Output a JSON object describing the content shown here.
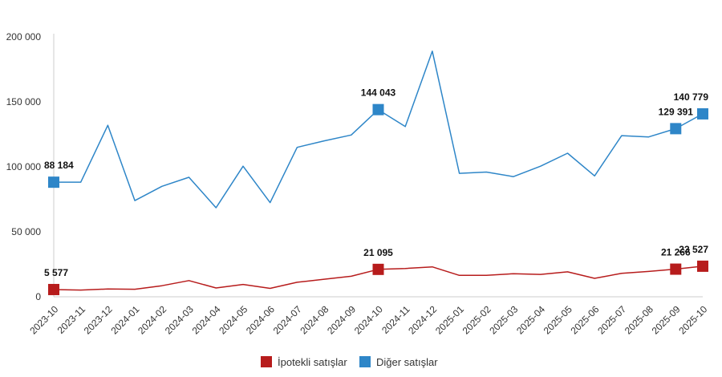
{
  "chart_data": {
    "type": "line",
    "title": "",
    "xlabel": "",
    "ylabel": "",
    "x": [
      "2023-10",
      "2023-11",
      "2023-12",
      "2024-01",
      "2024-02",
      "2024-03",
      "2024-04",
      "2024-05",
      "2024-06",
      "2024-07",
      "2024-08",
      "2024-09",
      "2024-10",
      "2024-11",
      "2024-12",
      "2025-01",
      "2025-02",
      "2025-03",
      "2025-04",
      "2025-05",
      "2025-06",
      "2025-07",
      "2025-08",
      "2025-09",
      "2025-10"
    ],
    "ylim": [
      0,
      200000
    ],
    "yticks": [
      0,
      50000,
      100000,
      150000,
      200000
    ],
    "ytick_labels": [
      "0",
      "50 000",
      "100 000",
      "150 000",
      "200 000"
    ],
    "grid": false,
    "legend_position": "bottom",
    "series": [
      {
        "name": "İpotekli satışlar",
        "color": "#b71c1c",
        "values": [
          5577,
          5200,
          6000,
          5800,
          8500,
          12500,
          6800,
          9500,
          6500,
          11200,
          13500,
          15800,
          21095,
          21800,
          23000,
          16500,
          16500,
          17800,
          17200,
          19200,
          14200,
          18000,
          19500,
          21266,
          23527
        ],
        "labeled_points": [
          {
            "index": 0,
            "label": "5 577"
          },
          {
            "index": 12,
            "label": "21 095"
          },
          {
            "index": 23,
            "label": "21 266"
          },
          {
            "index": 24,
            "label": "23 527"
          }
        ]
      },
      {
        "name": "Diğer satışlar",
        "color": "#2e86c8",
        "values": [
          88184,
          88200,
          132000,
          74000,
          85000,
          92000,
          68500,
          100500,
          72500,
          115000,
          120000,
          124500,
          144043,
          131000,
          189000,
          95000,
          96000,
          92500,
          100500,
          110500,
          93000,
          124000,
          123000,
          129391,
          140779
        ],
        "labeled_points": [
          {
            "index": 0,
            "label": "88 184"
          },
          {
            "index": 12,
            "label": "144 043"
          },
          {
            "index": 23,
            "label": "129 391"
          },
          {
            "index": 24,
            "label": "140 779"
          }
        ]
      }
    ]
  }
}
